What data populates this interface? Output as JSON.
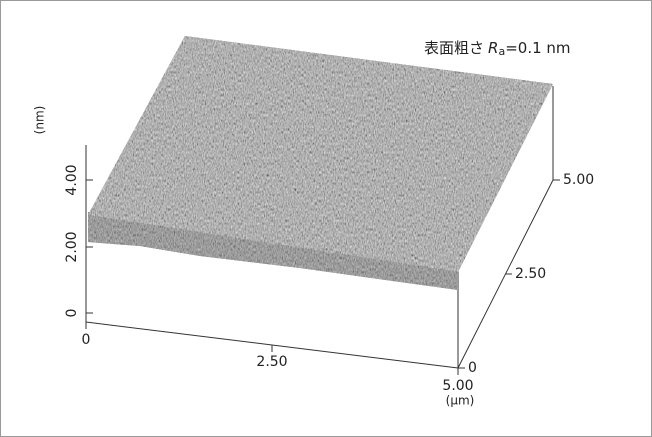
{
  "annotation": {
    "label": "表面粗さ",
    "symbol": "R",
    "subscript": "a",
    "value": "=0.1 nm"
  },
  "z_axis": {
    "unit": "(nm)",
    "ticks": [
      "0",
      "2.00",
      "4.00"
    ]
  },
  "x_axis": {
    "unit": "(μm)",
    "ticks": [
      "0",
      "2.50",
      "5.00"
    ]
  },
  "y_axis": {
    "ticks": [
      "0",
      "2.50",
      "5.00"
    ]
  }
}
